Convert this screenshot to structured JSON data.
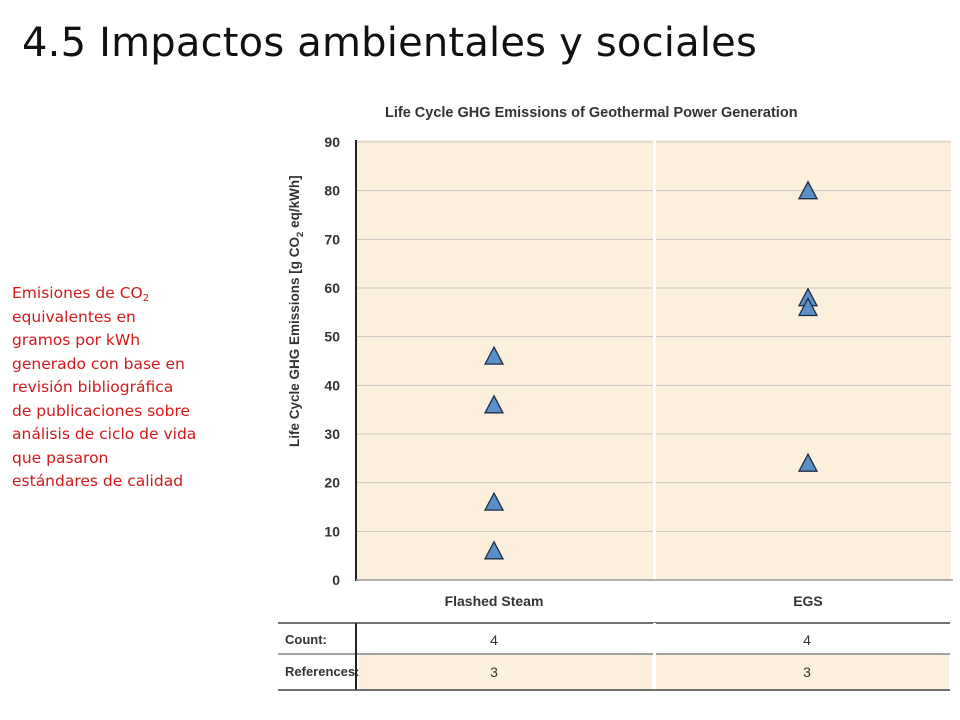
{
  "slide": {
    "title": "4.5 Impactos ambientales y sociales",
    "note_lines": [
      "Emisiones de CO",
      "equivalentes en",
      "gramos por kWh",
      "generado con base en",
      "revisión bibliográfica",
      "de publicaciones sobre",
      "análisis de ciclo de vida",
      "que pasaron",
      "estándares de calidad"
    ],
    "note_subscript": "2"
  },
  "chart_data": {
    "type": "scatter",
    "title": "Life Cycle GHG Emissions of Geothermal Power Generation",
    "ylabel": "Life Cycle GHG Emissions [g CO",
    "ylabel_sub": "2",
    "ylabel_tail": " eq/kWh]",
    "ylim": [
      0,
      90
    ],
    "yticks": [
      0,
      10,
      20,
      30,
      40,
      50,
      60,
      70,
      80,
      90
    ],
    "categories": [
      "Flashed Steam",
      "EGS"
    ],
    "series": [
      {
        "category": "Flashed Steam",
        "values": [
          46,
          36,
          16,
          6
        ]
      },
      {
        "category": "EGS",
        "values": [
          80,
          58,
          56,
          24
        ]
      }
    ],
    "marker": "triangle",
    "marker_color": "#5b8fc9",
    "background_color": "#fcf0dc",
    "table": {
      "count_label": "Count:",
      "references_label": "References:",
      "count": [
        "4",
        "4"
      ],
      "references": [
        "3",
        "3"
      ]
    }
  }
}
